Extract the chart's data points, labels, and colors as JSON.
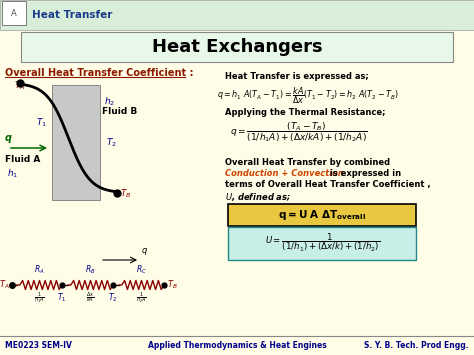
{
  "bg_color": "#FFFDE7",
  "header_bg": "#D8EED8",
  "title": "Heat Exchangers",
  "header_text": "Heat Transfer",
  "header_color": "#1A3A8A",
  "footer_left": "ME0223 SEM-IV",
  "footer_center": "Applied Thermodynamics & Heat Engines",
  "footer_right": "S. Y. B. Tech. Prod Engg.",
  "section_title": "Overall Heat Transfer Coefficient :",
  "section_color": "#8B1A00",
  "orange_color": "#CC4400",
  "blue_label": "#00008B",
  "red_label": "#8B0000",
  "green_arrow": "#006600",
  "box1_color": "#E8C840",
  "box2_color": "#C8EEE8",
  "box2_border": "#208888",
  "conduction_color": "#CC4400",
  "eq_text_color": "#000000",
  "wall_color": "#C8C8C8",
  "wall_border": "#888888"
}
